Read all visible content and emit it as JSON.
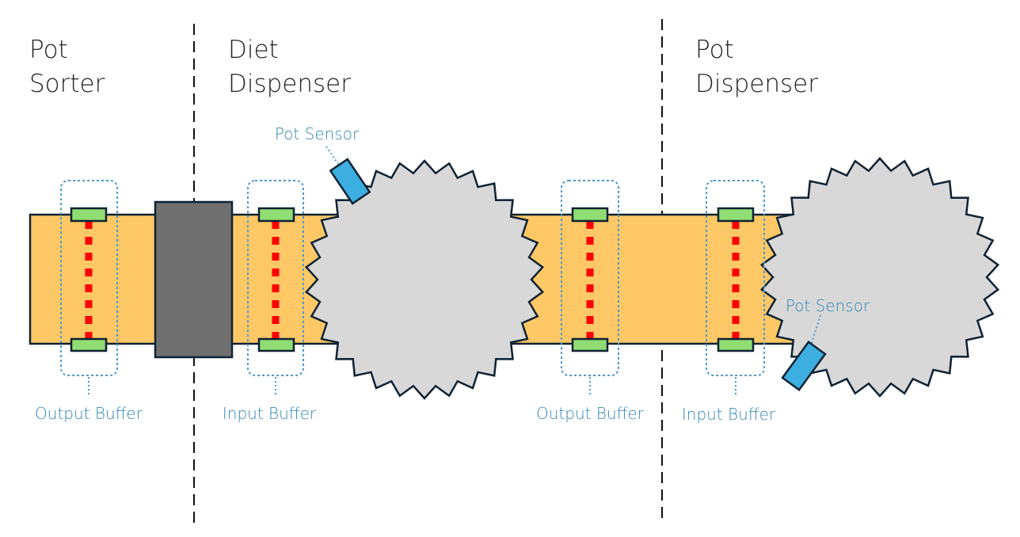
{
  "colors": {
    "conveyor": "#fdc865",
    "outline": "#0f2233",
    "barrier": "#6f6f6f",
    "wheel": "#d8d8d8",
    "sensor": "#3daee0",
    "pad": "#90dd73",
    "beam": "#ff0000",
    "label": "#2f86b4",
    "dotted": "#4b98cf",
    "divider": "#111111",
    "title": "#222222"
  },
  "sections": [
    {
      "title_line1": "Pot",
      "title_line2": "Sorter"
    },
    {
      "title_line1": "Diet",
      "title_line2": "Dispenser"
    },
    {
      "title_line1": "Pot",
      "title_line2": "Dispenser"
    }
  ],
  "buffers": [
    {
      "label": "Output Buffer"
    },
    {
      "label": "Input Buffer"
    },
    {
      "label": "Output Buffer"
    },
    {
      "label": "Input Buffer"
    }
  ],
  "sensors": [
    {
      "label": "Pot Sensor"
    },
    {
      "label": "Pot Sensor"
    }
  ]
}
